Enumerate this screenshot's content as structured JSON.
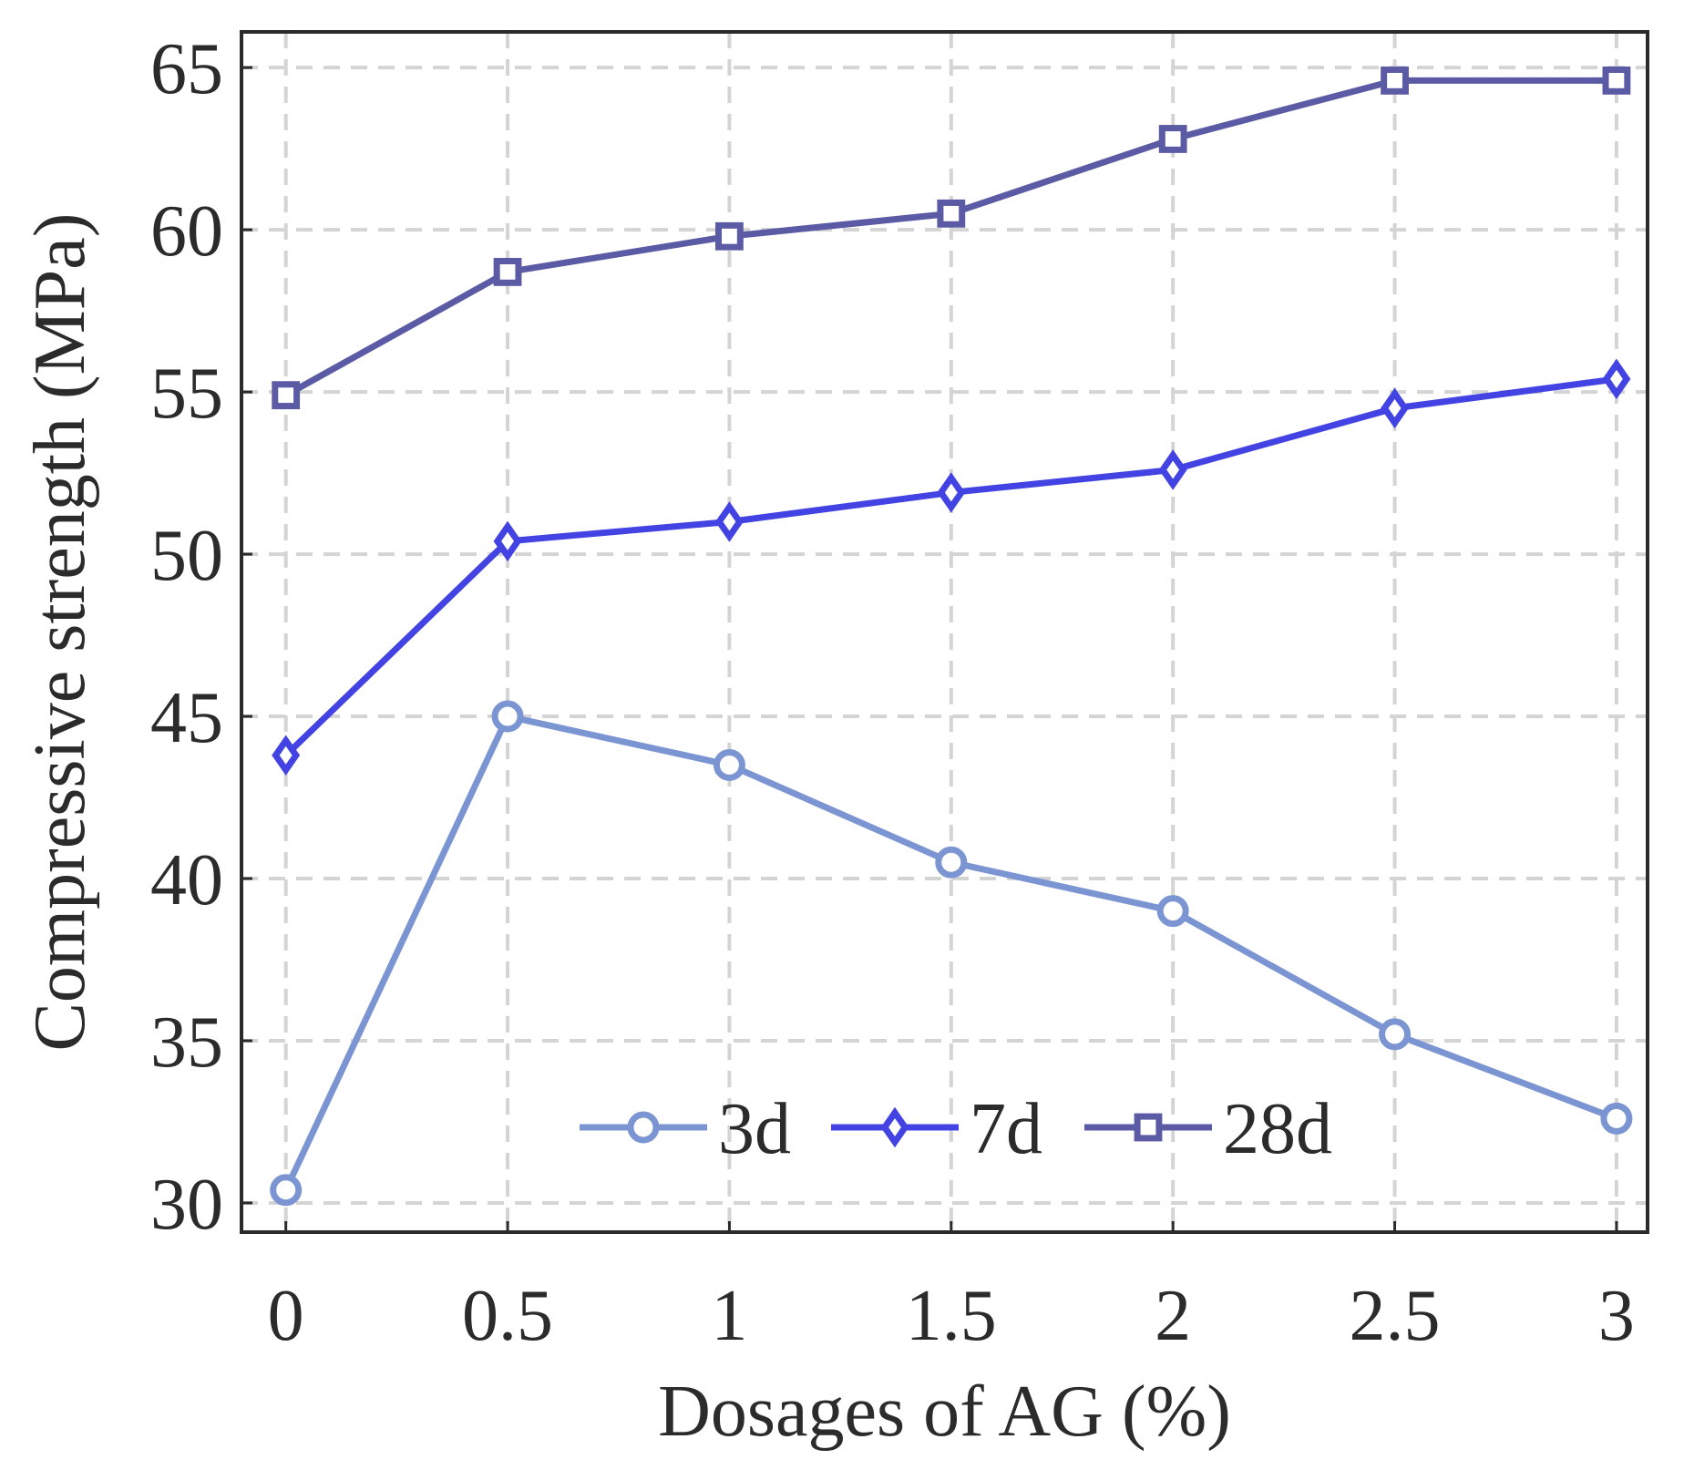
{
  "chart_data": {
    "type": "line",
    "title": "",
    "xlabel": "Dosages of AG (%)",
    "ylabel": "Compressive strength (MPa)",
    "x": [
      0,
      0.5,
      1,
      1.5,
      2,
      2.5,
      3
    ],
    "x_tick_labels": [
      "0",
      "0.5",
      "1",
      "1.5",
      "2",
      "2.5",
      "3"
    ],
    "y_ticks": [
      30,
      35,
      40,
      45,
      50,
      55,
      60,
      65
    ],
    "y_tick_labels": [
      "30",
      "35",
      "40",
      "45",
      "50",
      "55",
      "60",
      "65"
    ],
    "xlim": [
      -0.1,
      3.07
    ],
    "ylim": [
      29.1,
      66.1
    ],
    "grid": true,
    "legend_position": "bottom-center",
    "series": [
      {
        "name": "3d",
        "marker": "circle",
        "color": "#7b94d2",
        "values": [
          30.4,
          45.0,
          43.5,
          40.5,
          39.0,
          35.2,
          32.6
        ]
      },
      {
        "name": "7d",
        "marker": "diamond",
        "color": "#4343e3",
        "values": [
          43.8,
          50.4,
          51.0,
          51.9,
          52.6,
          54.5,
          55.4
        ]
      },
      {
        "name": "28d",
        "marker": "square",
        "color": "#5b5aa5",
        "values": [
          54.9,
          58.7,
          59.8,
          60.5,
          62.8,
          64.6,
          64.6
        ]
      }
    ]
  }
}
